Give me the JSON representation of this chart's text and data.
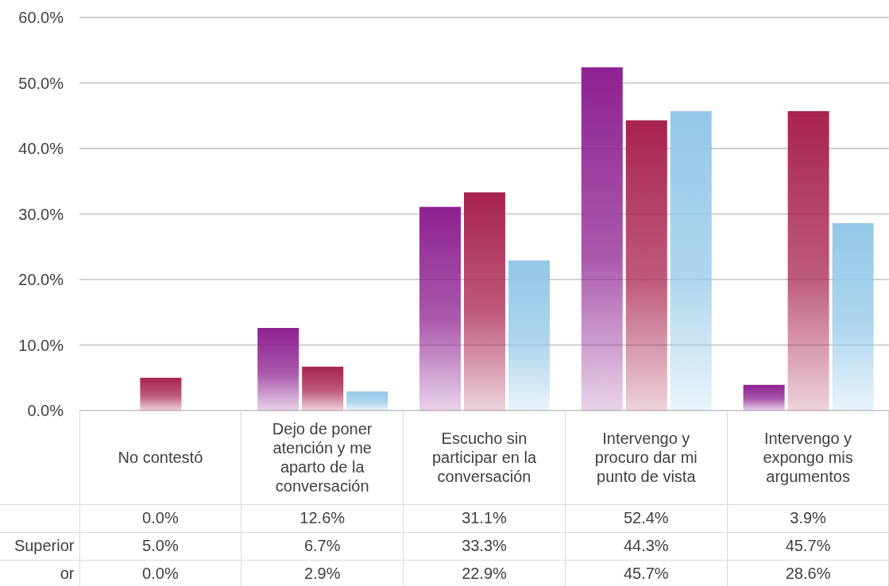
{
  "chart_data": {
    "type": "bar",
    "categories": [
      "No contestó",
      "Dejo de poner atención y me aparto de la conversación",
      "Escucho sin participar en la conversación",
      "Intervengo y procuro dar mi punto de vista",
      "Intervengo y expongo mis argumentos"
    ],
    "series": [
      {
        "color": "#8e2191",
        "values": [
          0.0,
          12.6,
          31.1,
          52.4,
          3.9
        ],
        "value_labels": [
          "0.0%",
          "12.6%",
          "31.1%",
          "52.4%",
          "3.9%"
        ]
      },
      {
        "name": "Superior",
        "color": "#a8234e",
        "values": [
          5.0,
          6.7,
          33.3,
          44.3,
          45.7
        ],
        "value_labels": [
          "5.0%",
          "6.7%",
          "33.3%",
          "44.3%",
          "45.7%"
        ]
      },
      {
        "name": "or",
        "color": "#93c8e8",
        "values": [
          0.0,
          2.9,
          22.9,
          45.7,
          28.6
        ],
        "value_labels": [
          "0.0%",
          "2.9%",
          "22.9%",
          "45.7%",
          "28.6%"
        ]
      }
    ],
    "ylim": [
      0,
      60
    ],
    "yticks": [
      {
        "value": 0,
        "label": "0.0%"
      },
      {
        "value": 10,
        "label": "10.0%"
      },
      {
        "value": 20,
        "label": "20.0%"
      },
      {
        "value": 30,
        "label": "30.0%"
      },
      {
        "value": 40,
        "label": "40.0%"
      },
      {
        "value": 50,
        "label": "50.0%"
      },
      {
        "value": 60,
        "label": "60.0%"
      }
    ],
    "grid": "y",
    "legend": "bottom left"
  }
}
